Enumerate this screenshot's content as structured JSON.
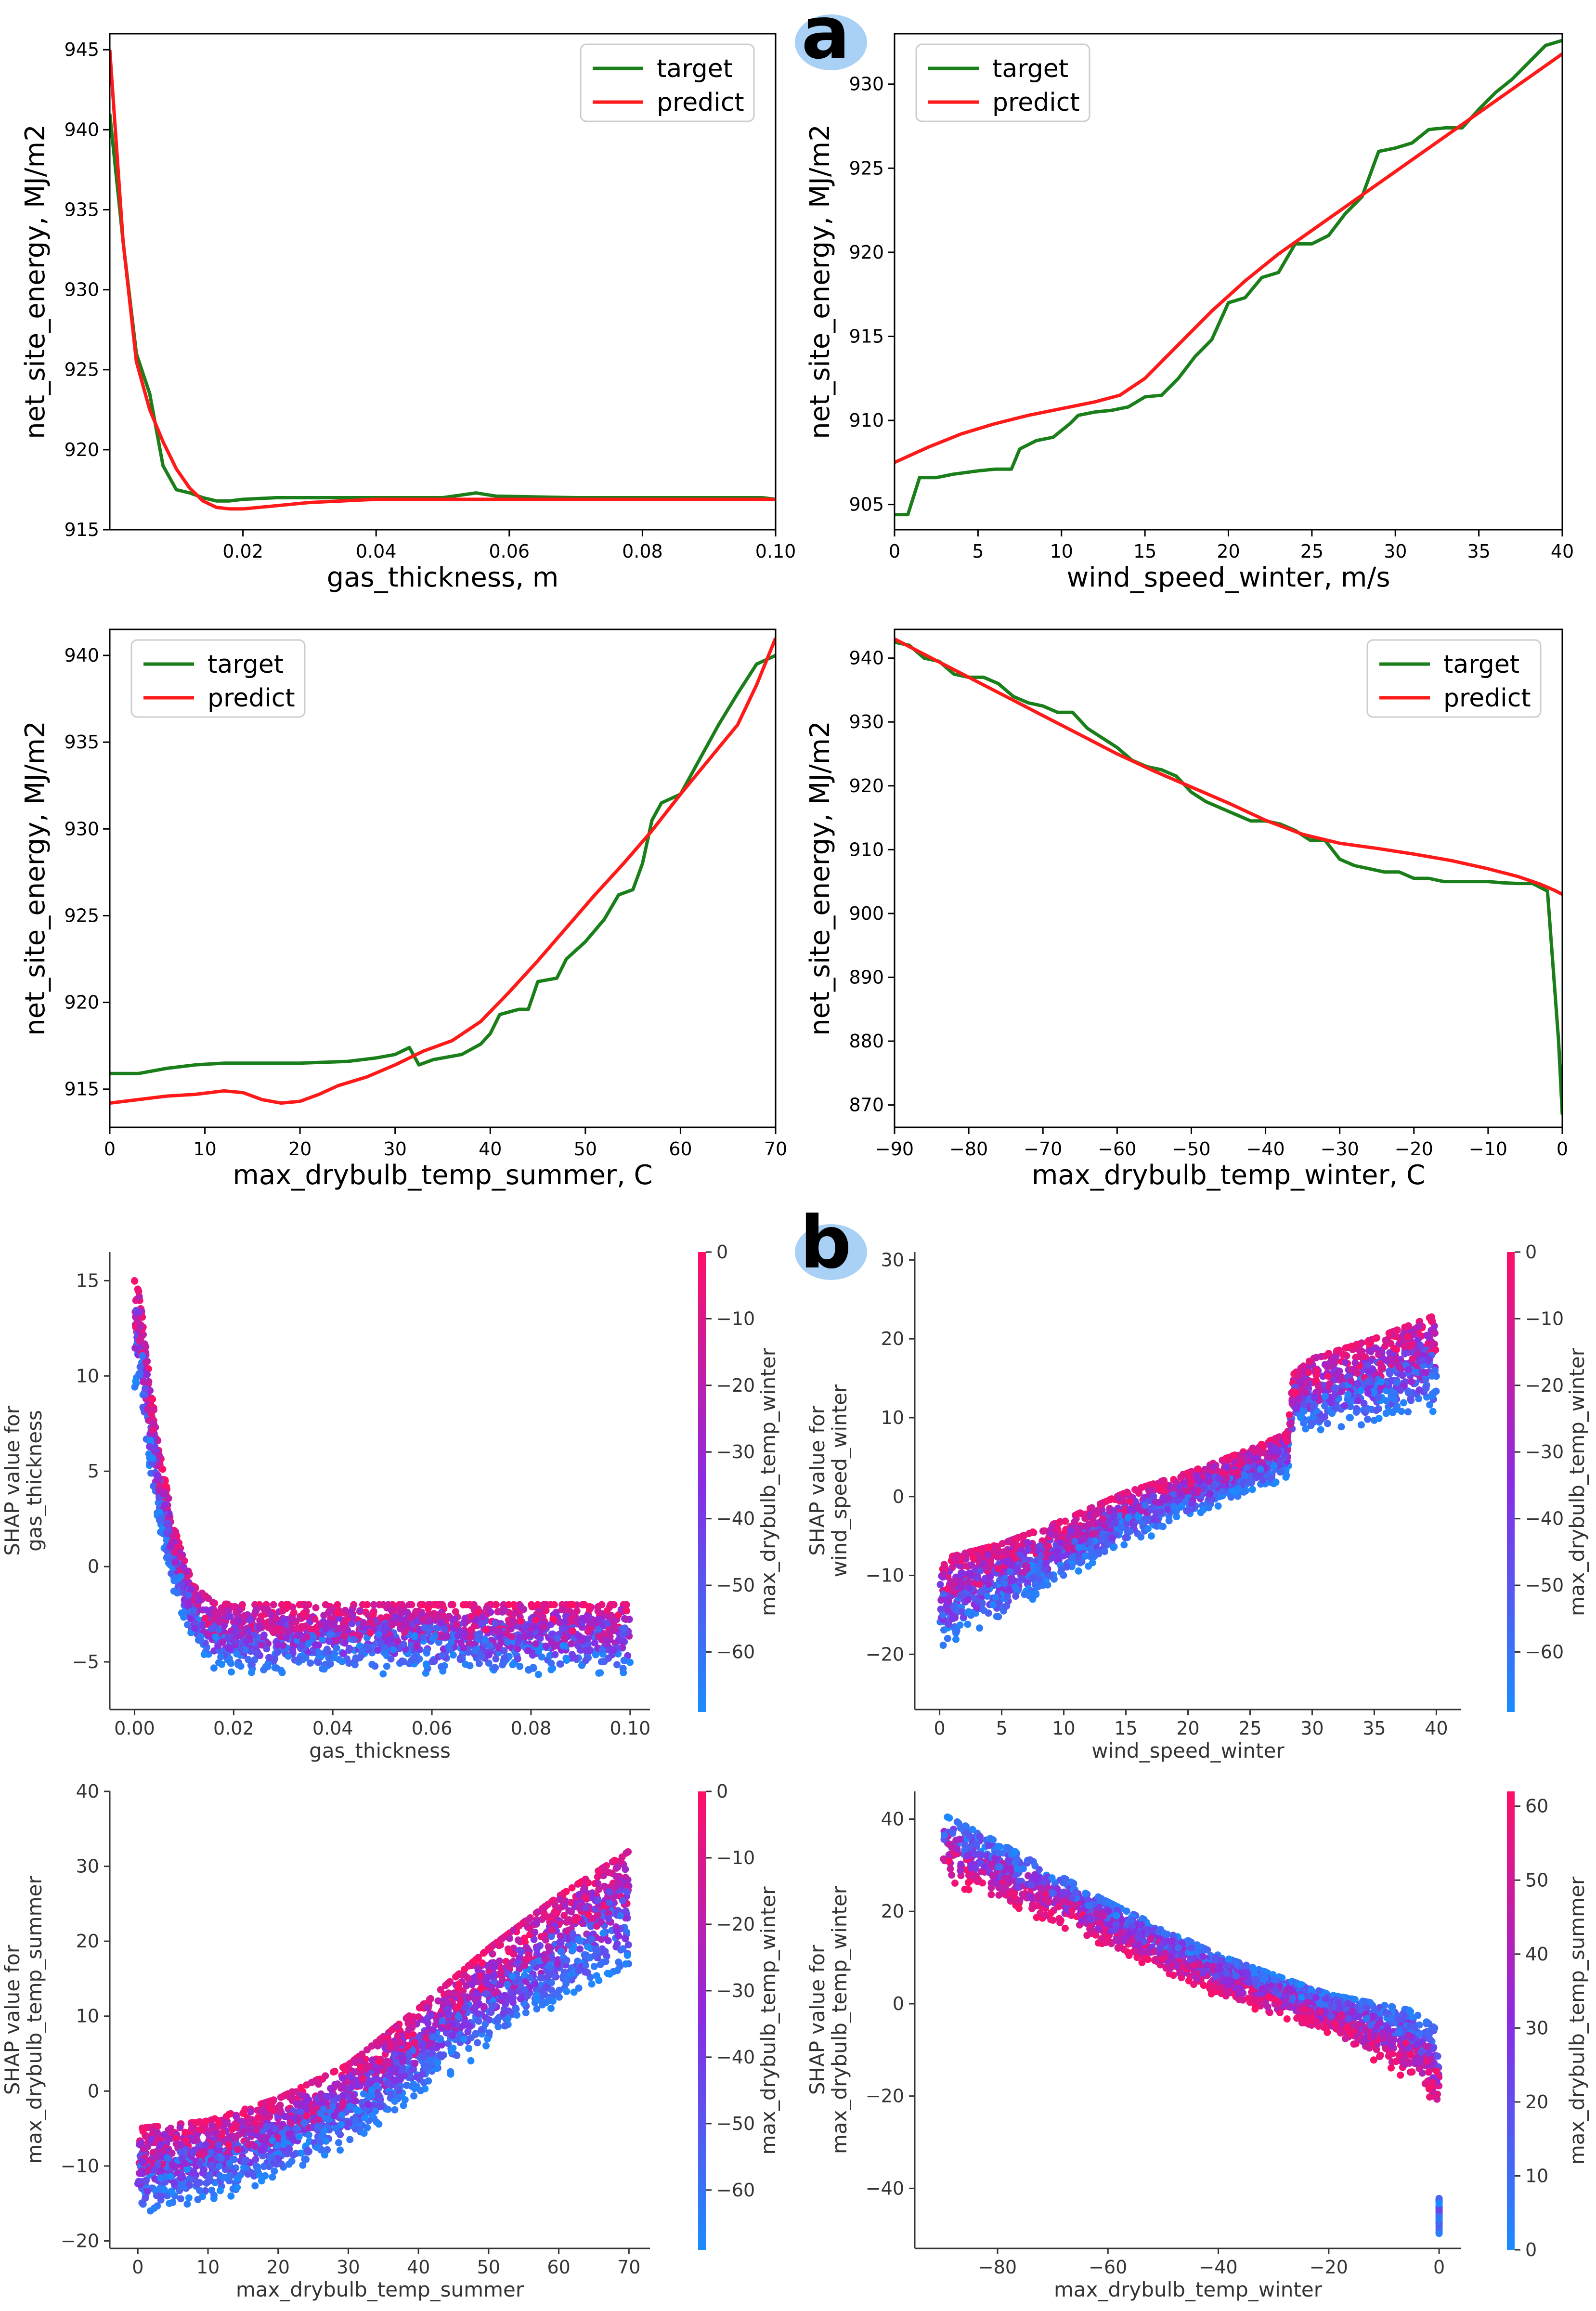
{
  "panel_labels": [
    "a",
    "b"
  ],
  "colors": {
    "target": "#1a7f1a",
    "predict": "#ff1a1a",
    "colormap_low": "#1a8cff",
    "colormap_mid": "#8a2be2",
    "colormap_high": "#ff0f66",
    "badge": "#a9d1f5"
  },
  "legend": {
    "target": "target",
    "predict": "predict"
  },
  "chart_data": [
    {
      "type": "line",
      "id": "a1",
      "xlabel": "gas_thickness, m",
      "ylabel": "net_site_energy, MJ/m2",
      "xlim": [
        0.0,
        0.1
      ],
      "ylim": [
        915,
        946
      ],
      "xticks": [
        0.02,
        0.04,
        0.06,
        0.08,
        0.1
      ],
      "xtick_labels": [
        "0.02",
        "0.04",
        "0.06",
        "0.08",
        "0.10"
      ],
      "yticks": [
        915,
        920,
        925,
        930,
        935,
        940,
        945
      ],
      "ytick_labels": [
        "915",
        "920",
        "925",
        "930",
        "935",
        "940",
        "945"
      ],
      "series": [
        {
          "name": "target",
          "x": [
            0.0,
            0.002,
            0.004,
            0.006,
            0.008,
            0.01,
            0.012,
            0.014,
            0.016,
            0.018,
            0.02,
            0.025,
            0.03,
            0.04,
            0.05,
            0.055,
            0.058,
            0.07,
            0.09,
            0.098,
            0.1
          ],
          "y": [
            941,
            933,
            926,
            923.5,
            919,
            917.5,
            917.3,
            917.0,
            916.8,
            916.8,
            916.9,
            917.0,
            917.0,
            917.0,
            917.0,
            917.3,
            917.1,
            917.0,
            917.0,
            917.0,
            916.9
          ]
        },
        {
          "name": "predict",
          "x": [
            0.0,
            0.002,
            0.004,
            0.006,
            0.008,
            0.01,
            0.012,
            0.014,
            0.016,
            0.018,
            0.02,
            0.025,
            0.03,
            0.04,
            0.05,
            0.06,
            0.08,
            0.1
          ],
          "y": [
            945,
            933,
            925.5,
            922.5,
            920.5,
            918.8,
            917.6,
            916.8,
            916.4,
            916.3,
            916.3,
            916.5,
            916.7,
            916.9,
            916.9,
            916.9,
            916.9,
            916.9
          ]
        }
      ]
    },
    {
      "type": "line",
      "id": "a2",
      "xlabel": "wind_speed_winter, m/s",
      "ylabel": "net_site_energy, MJ/m2",
      "xlim": [
        0,
        40
      ],
      "ylim": [
        903.5,
        933
      ],
      "xticks": [
        0,
        5,
        10,
        15,
        20,
        25,
        30,
        35,
        40
      ],
      "xtick_labels": [
        "0",
        "5",
        "10",
        "15",
        "20",
        "25",
        "30",
        "35",
        "40"
      ],
      "yticks": [
        905,
        910,
        915,
        920,
        925,
        930
      ],
      "ytick_labels": [
        "905",
        "910",
        "915",
        "920",
        "925",
        "930"
      ],
      "series": [
        {
          "name": "target",
          "x": [
            0,
            0.8,
            1.5,
            2.5,
            3.5,
            5,
            6,
            7,
            7.5,
            8.5,
            9.5,
            10.5,
            11,
            12,
            13,
            14,
            15,
            16,
            17,
            18,
            19,
            20,
            21,
            22,
            23,
            24,
            25,
            26,
            27,
            28,
            29,
            30,
            31,
            32,
            33,
            34,
            35,
            36,
            37,
            38,
            39,
            40
          ],
          "y": [
            904.4,
            904.4,
            906.6,
            906.6,
            906.8,
            907.0,
            907.1,
            907.1,
            908.3,
            908.8,
            909.0,
            909.8,
            910.3,
            910.5,
            910.6,
            910.8,
            911.4,
            911.5,
            912.5,
            913.8,
            914.8,
            917.0,
            917.3,
            918.5,
            918.8,
            920.5,
            920.5,
            921.0,
            922.3,
            923.3,
            926.0,
            926.2,
            926.5,
            927.3,
            927.4,
            927.4,
            928.5,
            929.5,
            930.3,
            931.3,
            932.3,
            932.6
          ]
        },
        {
          "name": "predict",
          "x": [
            0,
            2,
            4,
            6,
            8,
            10,
            12,
            13.5,
            15,
            17,
            19,
            21,
            23,
            25,
            27,
            29,
            31,
            33,
            35,
            37,
            40
          ],
          "y": [
            907.5,
            908.4,
            909.2,
            909.8,
            910.3,
            910.7,
            911.1,
            911.5,
            912.5,
            914.5,
            916.5,
            918.3,
            919.9,
            921.3,
            922.7,
            924.1,
            925.5,
            926.9,
            928.3,
            929.7,
            931.8
          ]
        }
      ]
    },
    {
      "type": "line",
      "id": "a3",
      "xlabel": "max_drybulb_temp_summer, C",
      "ylabel": "net_site_energy, MJ/m2",
      "xlim": [
        0,
        70
      ],
      "ylim": [
        912.8,
        941.5
      ],
      "xticks": [
        0,
        10,
        20,
        30,
        40,
        50,
        60,
        70
      ],
      "xtick_labels": [
        "0",
        "10",
        "20",
        "30",
        "40",
        "50",
        "60",
        "70"
      ],
      "yticks": [
        915,
        920,
        925,
        930,
        935,
        940
      ],
      "ytick_labels": [
        "915",
        "920",
        "925",
        "930",
        "935",
        "940"
      ],
      "series": [
        {
          "name": "target",
          "x": [
            0,
            3,
            6,
            9,
            12,
            15,
            20,
            25,
            28,
            30,
            31.5,
            32.5,
            34,
            37,
            39,
            40,
            41,
            43,
            44,
            45,
            47,
            48,
            50,
            52,
            53.5,
            55,
            56,
            57,
            58,
            60,
            62,
            64,
            66,
            68,
            70
          ],
          "y": [
            915.9,
            915.9,
            916.2,
            916.4,
            916.5,
            916.5,
            916.5,
            916.6,
            916.8,
            917.0,
            917.4,
            916.4,
            916.7,
            917.0,
            917.6,
            918.2,
            919.3,
            919.6,
            919.6,
            921.2,
            921.4,
            922.5,
            923.5,
            924.8,
            926.2,
            926.5,
            928.0,
            930.5,
            931.5,
            932.0,
            934.0,
            936.0,
            937.8,
            939.5,
            940.0
          ]
        },
        {
          "name": "predict",
          "x": [
            0,
            3,
            6,
            9,
            12,
            14,
            16,
            18,
            20,
            22,
            24,
            27,
            30,
            33,
            36,
            39,
            42,
            45,
            48,
            51,
            54,
            57,
            60,
            63,
            66,
            68,
            70
          ],
          "y": [
            914.2,
            914.4,
            914.6,
            914.7,
            914.9,
            914.8,
            914.4,
            914.2,
            914.3,
            914.7,
            915.2,
            915.7,
            916.4,
            917.2,
            917.8,
            918.9,
            920.6,
            922.4,
            924.3,
            926.2,
            928.0,
            929.9,
            932.0,
            934.0,
            936.0,
            938.3,
            941.0
          ]
        }
      ]
    },
    {
      "type": "line",
      "id": "a4",
      "xlabel": "max_drybulb_temp_winter, C",
      "ylabel": "net_site_energy, MJ/m2",
      "xlim": [
        -90,
        0
      ],
      "ylim": [
        866.5,
        944.5
      ],
      "xticks": [
        -90,
        -80,
        -70,
        -60,
        -50,
        -40,
        -30,
        -20,
        -10,
        0
      ],
      "xtick_labels": [
        "−90",
        "−80",
        "−70",
        "−60",
        "−50",
        "−40",
        "−30",
        "−20",
        "−10",
        "0"
      ],
      "yticks": [
        870,
        880,
        890,
        900,
        910,
        920,
        930,
        940
      ],
      "ytick_labels": [
        "870",
        "880",
        "890",
        "900",
        "910",
        "920",
        "930",
        "940"
      ],
      "series": [
        {
          "name": "target",
          "x": [
            -90,
            -88,
            -86,
            -84,
            -82,
            -80,
            -78,
            -76,
            -74,
            -72,
            -70,
            -68,
            -66,
            -64,
            -62,
            -60,
            -58,
            -56,
            -54,
            -52,
            -50,
            -48,
            -46,
            -44,
            -42,
            -40,
            -38,
            -36,
            -34,
            -32,
            -30,
            -28,
            -26,
            -24,
            -22,
            -20,
            -18,
            -16,
            -14,
            -12,
            -10,
            -8,
            -6,
            -4,
            -2,
            -0.5,
            0
          ],
          "y": [
            942.5,
            942.0,
            940.0,
            939.5,
            937.5,
            937.0,
            937.0,
            936.0,
            934.0,
            933.0,
            932.5,
            931.5,
            931.5,
            929.0,
            927.5,
            926.0,
            924.0,
            923.0,
            922.5,
            921.5,
            919.0,
            917.5,
            916.5,
            915.5,
            914.5,
            914.5,
            914.0,
            913.0,
            911.5,
            911.5,
            908.5,
            907.5,
            907.0,
            906.5,
            906.5,
            905.5,
            905.5,
            905.0,
            905.0,
            905.0,
            905.0,
            904.8,
            904.7,
            904.7,
            903.5,
            880.0,
            868.5
          ]
        },
        {
          "name": "predict",
          "x": [
            -90,
            -85,
            -80,
            -75,
            -70,
            -65,
            -60,
            -55,
            -50,
            -45,
            -40,
            -35,
            -30,
            -25,
            -20,
            -15,
            -10,
            -6,
            -3,
            -1,
            0
          ],
          "y": [
            943.0,
            940.0,
            937.0,
            934.0,
            931.0,
            928.0,
            925.0,
            922.3,
            919.8,
            917.3,
            914.6,
            912.4,
            911.0,
            910.2,
            909.3,
            908.3,
            907.0,
            905.8,
            904.6,
            903.6,
            903.0
          ]
        }
      ]
    },
    {
      "type": "scatter",
      "id": "b1",
      "xlabel": "gas_thickness",
      "ylabel_lines": [
        "SHAP value for",
        "gas_thickness"
      ],
      "colorbar_label": "max_drybulb_temp_winter",
      "colorbar_range": [
        -69,
        0
      ],
      "colorbar_ticks": [
        0,
        -10,
        -20,
        -30,
        -40,
        -50,
        -60
      ],
      "colorbar_tick_labels": [
        "0",
        "−10",
        "−20",
        "−30",
        "−40",
        "−50",
        "−60"
      ],
      "xlim": [
        -0.005,
        0.104
      ],
      "ylim": [
        -7.5,
        16.5
      ],
      "xticks": [
        0.0,
        0.02,
        0.04,
        0.06,
        0.08,
        0.1
      ],
      "xtick_labels": [
        "0.00",
        "0.02",
        "0.04",
        "0.06",
        "0.08",
        "0.10"
      ],
      "yticks": [
        -5,
        0,
        5,
        10,
        15
      ],
      "ytick_labels": [
        "−5",
        "0",
        "5",
        "10",
        "15"
      ],
      "x_range": [
        0.0,
        0.1
      ],
      "trend": {
        "x": [
          0.0,
          0.001,
          0.003,
          0.005,
          0.008,
          0.012,
          0.016,
          0.1
        ],
        "y": [
          12.0,
          11.5,
          7.5,
          4.0,
          0.5,
          -2.2,
          -3.0,
          -3.0
        ]
      },
      "spread": {
        "x": [
          0.0,
          0.01,
          0.02,
          0.1
        ],
        "lo": [
          -3.0,
          -2.0,
          -2.8,
          -2.8
        ],
        "hi": [
          3.0,
          1.2,
          1.0,
          1.0
        ]
      },
      "n_points": 2000
    },
    {
      "type": "scatter",
      "id": "b2",
      "xlabel": "wind_speed_winter",
      "ylabel_lines": [
        "SHAP value for",
        "wind_speed_winter"
      ],
      "colorbar_label": "max_drybulb_temp_winter",
      "colorbar_range": [
        -69,
        0
      ],
      "colorbar_ticks": [
        0,
        -10,
        -20,
        -30,
        -40,
        -50,
        -60
      ],
      "colorbar_tick_labels": [
        "0",
        "−10",
        "−20",
        "−30",
        "−40",
        "−50",
        "−60"
      ],
      "xlim": [
        -2.0,
        42.0
      ],
      "ylim": [
        -27,
        31
      ],
      "xticks": [
        0,
        5,
        10,
        15,
        20,
        25,
        30,
        35,
        40
      ],
      "xtick_labels": [
        "0",
        "5",
        "10",
        "15",
        "20",
        "25",
        "30",
        "35",
        "40"
      ],
      "yticks": [
        -20,
        -10,
        0,
        10,
        20,
        30
      ],
      "ytick_labels": [
        "−20",
        "−10",
        "0",
        "10",
        "20",
        "30"
      ],
      "x_range": [
        0,
        40
      ],
      "trend": {
        "x": [
          0,
          5,
          10,
          15,
          20,
          25,
          28,
          28.5,
          35,
          40
        ],
        "y": [
          -14,
          -11,
          -7,
          -3,
          0,
          3,
          5,
          12,
          14,
          16
        ]
      },
      "spread": {
        "x": [
          0,
          10,
          20,
          28,
          30,
          40
        ],
        "lo": [
          -6,
          -4,
          -3,
          -3,
          -5,
          -6
        ],
        "hi": [
          6,
          4,
          3,
          3,
          5,
          7
        ]
      },
      "n_points": 2200
    },
    {
      "type": "scatter",
      "id": "b3",
      "xlabel": "max_drybulb_temp_summer",
      "ylabel_lines": [
        "SHAP value for",
        "max_drybulb_temp_summer"
      ],
      "colorbar_label": "max_drybulb_temp_winter",
      "colorbar_range": [
        -69,
        0
      ],
      "colorbar_ticks": [
        0,
        -10,
        -20,
        -30,
        -40,
        -50,
        -60
      ],
      "colorbar_tick_labels": [
        "0",
        "−10",
        "−20",
        "−30",
        "−40",
        "−50",
        "−60"
      ],
      "xlim": [
        -4,
        73
      ],
      "ylim": [
        -21,
        40
      ],
      "xticks": [
        0,
        10,
        20,
        30,
        40,
        50,
        60,
        70
      ],
      "xtick_labels": [
        "0",
        "10",
        "20",
        "30",
        "40",
        "50",
        "60",
        "70"
      ],
      "yticks": [
        -20,
        -10,
        0,
        10,
        20,
        30,
        40
      ],
      "ytick_labels": [
        "−20",
        "−10",
        "0",
        "10",
        "20",
        "30",
        "40"
      ],
      "x_range": [
        0,
        70
      ],
      "trend": {
        "x": [
          0,
          10,
          20,
          30,
          40,
          50,
          60,
          70
        ],
        "y": [
          -10,
          -9,
          -6,
          -2,
          5,
          12,
          18,
          22
        ]
      },
      "spread": {
        "x": [
          0,
          20,
          40,
          60,
          70
        ],
        "lo": [
          -7,
          -6,
          -6,
          -7,
          -7
        ],
        "hi": [
          5,
          5,
          6,
          8,
          10
        ]
      },
      "n_points": 2400
    },
    {
      "type": "scatter",
      "id": "b4",
      "xlabel": "max_drybulb_temp_winter",
      "ylabel_lines": [
        "SHAP value for",
        "max_drybulb_temp_winter"
      ],
      "colorbar_label": "max_drybulb_temp_summer",
      "colorbar_range": [
        0,
        62
      ],
      "colorbar_ticks": [
        60,
        50,
        40,
        30,
        20,
        10,
        0
      ],
      "colorbar_tick_labels": [
        "60",
        "50",
        "40",
        "30",
        "20",
        "10",
        "0"
      ],
      "xlim": [
        -95,
        4
      ],
      "ylim": [
        -53,
        46
      ],
      "xticks": [
        -80,
        -60,
        -40,
        -20,
        0
      ],
      "xtick_labels": [
        "−80",
        "−60",
        "−40",
        "−20",
        "0"
      ],
      "yticks": [
        -40,
        -20,
        0,
        20,
        40
      ],
      "ytick_labels": [
        "−40",
        "−20",
        "0",
        "20",
        "40"
      ],
      "x_range": [
        -90,
        0
      ],
      "trend": {
        "x": [
          -90,
          -80,
          -60,
          -40,
          -20,
          -5,
          0
        ],
        "y": [
          33,
          28,
          17,
          6,
          -2,
          -7,
          -12
        ]
      },
      "spread": {
        "x": [
          -90,
          -60,
          -20,
          0
        ],
        "lo": [
          -7,
          -5,
          -5,
          -12
        ],
        "hi": [
          8,
          5,
          4,
          6
        ]
      },
      "n_points": 2000
    }
  ]
}
